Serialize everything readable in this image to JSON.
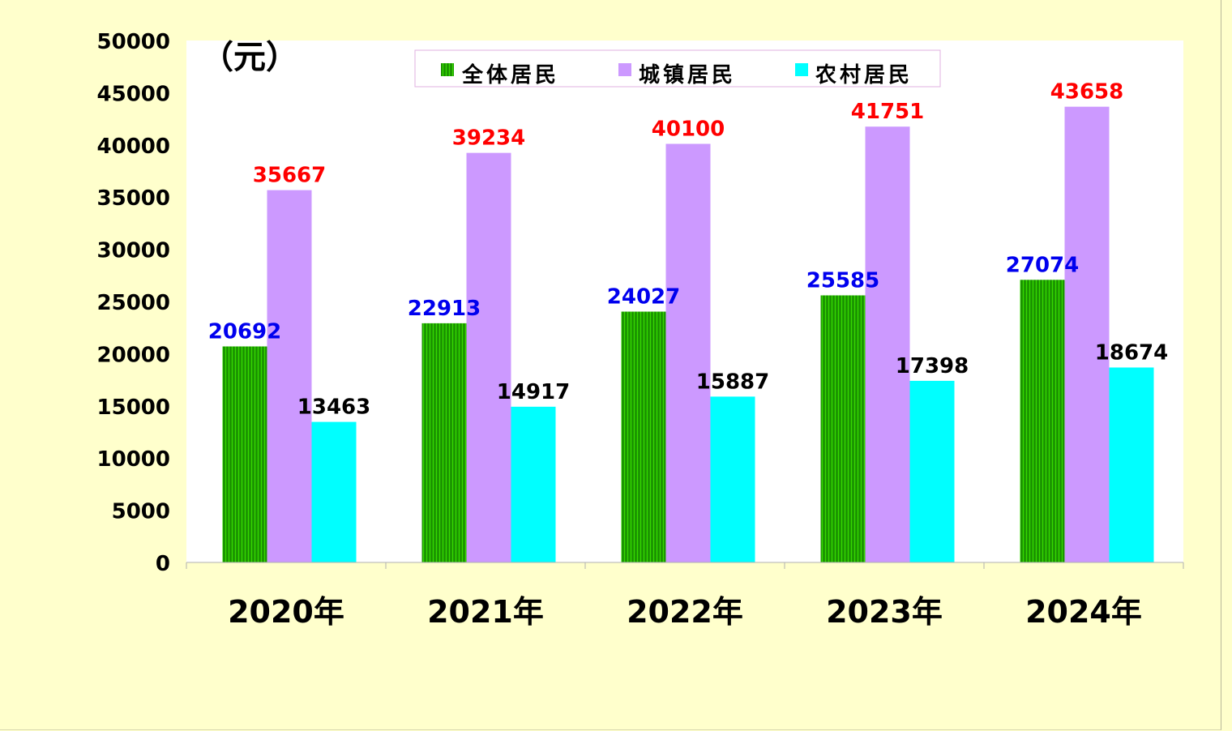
{
  "colors": {
    "background": "#ffffcc",
    "plot_area": "#ffffff",
    "all_residents": "#22cc00",
    "urban_residents": "#cc99ff",
    "rural_residents": "#00ffff",
    "label_all": "#0000ee",
    "label_urban": "#ff0000",
    "label_rural": "#000000"
  },
  "chart_data": {
    "type": "bar",
    "unit_label": "（元）",
    "categories": [
      "2020年",
      "2021年",
      "2022年",
      "2023年",
      "2024年"
    ],
    "ylim": [
      0,
      50000
    ],
    "yticks": [
      "0",
      "5000",
      "10000",
      "15000",
      "20000",
      "25000",
      "30000",
      "35000",
      "40000",
      "45000",
      "50000"
    ],
    "grid": false,
    "legend_position": "top",
    "series": [
      {
        "name": "全体居民",
        "values": [
          20692,
          22913,
          24027,
          25585,
          27074
        ]
      },
      {
        "name": "城镇居民",
        "values": [
          35667,
          39234,
          40100,
          41751,
          43658
        ]
      },
      {
        "name": "农村居民",
        "values": [
          13463,
          14917,
          15887,
          17398,
          18674
        ]
      }
    ]
  }
}
